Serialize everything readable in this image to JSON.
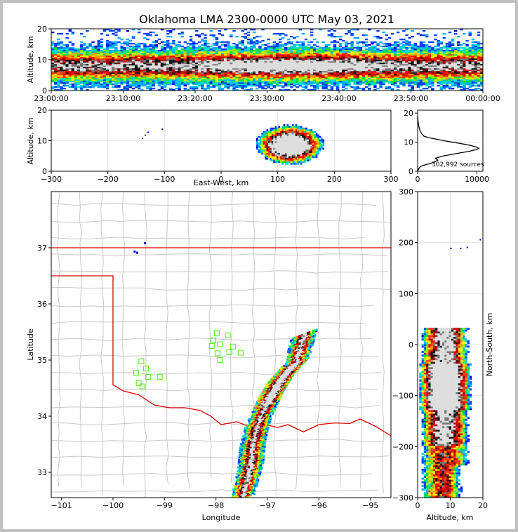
{
  "title": "Oklahoma LMA 2300-0000 UTC May 03, 2021",
  "chart_data": [
    {
      "type": "heatmap",
      "panel": "altitude-vs-time",
      "ylabel": "Altitude, km",
      "ylim": [
        0,
        20
      ],
      "yticks": [
        "0",
        "10",
        "20"
      ],
      "xticks": [
        "23:00:00",
        "23:10:00",
        "23:20:00",
        "23:30:00",
        "23:40:00",
        "23:50:00",
        "00:00:00"
      ],
      "xlim": [
        "23:00:00",
        "00:00:00"
      ],
      "peak_density_altitude_km": 8
    },
    {
      "type": "heatmap",
      "panel": "altitude-vs-east-west",
      "xlabel": "East-West, km",
      "ylabel": "Altitude, km",
      "xlim": [
        -300,
        300
      ],
      "ylim": [
        0,
        20
      ],
      "xticks": [
        "−300",
        "−200",
        "−100",
        "0",
        "100",
        "200",
        "300"
      ],
      "yticks": [
        "0",
        "10",
        "20"
      ],
      "core_x_km": [
        60,
        180
      ],
      "grid": true
    },
    {
      "type": "line",
      "panel": "source-altitude-histogram",
      "xlim": [
        0,
        11000
      ],
      "ylim": [
        0,
        21
      ],
      "xticks": [
        "0",
        "10000"
      ],
      "yticks": [
        "0",
        "10",
        "20"
      ],
      "annotation": "302,992 sources",
      "x": [
        0,
        200,
        500,
        900,
        1600,
        2600,
        3400,
        3000,
        4200,
        6300,
        8600,
        9800,
        10300,
        9800,
        8700,
        6800,
        4700,
        3200,
        2000,
        1100,
        650,
        400,
        200,
        80,
        0
      ],
      "y": [
        0,
        1,
        1.6,
        2,
        2.4,
        3,
        3.8,
        4.5,
        5.2,
        6,
        6.8,
        7.4,
        7.9,
        8.4,
        9,
        9.7,
        10.4,
        11,
        11.5,
        12,
        13,
        14,
        15.5,
        17,
        19
      ]
    },
    {
      "type": "heatmap",
      "panel": "plan-view-map",
      "xlabel": "Longitude",
      "ylabel": "Latitude",
      "xlim": [
        -101.2,
        -94.6
      ],
      "ylim": [
        32.55,
        38
      ],
      "xticks": [
        "−101",
        "−100",
        "−99",
        "−98",
        "−97",
        "−96",
        "−95"
      ],
      "yticks": [
        "33",
        "34",
        "35",
        "36",
        "37"
      ],
      "stations": [
        {
          "lon": -97.98,
          "lat": 35.48
        },
        {
          "lon": -98.05,
          "lat": 35.35
        },
        {
          "lon": -98.08,
          "lat": 35.25
        },
        {
          "lon": -97.92,
          "lat": 35.28
        },
        {
          "lon": -97.77,
          "lat": 35.44
        },
        {
          "lon": -97.67,
          "lat": 35.24
        },
        {
          "lon": -97.97,
          "lat": 35.12
        },
        {
          "lon": -97.74,
          "lat": 35.14
        },
        {
          "lon": -97.52,
          "lat": 35.13
        },
        {
          "lon": -97.92,
          "lat": 35.0
        },
        {
          "lon": -99.45,
          "lat": 34.98
        },
        {
          "lon": -99.36,
          "lat": 34.85
        },
        {
          "lon": -99.55,
          "lat": 34.77
        },
        {
          "lon": -99.32,
          "lat": 34.7
        },
        {
          "lon": -99.09,
          "lat": 34.7
        },
        {
          "lon": -99.5,
          "lat": 34.59
        },
        {
          "lon": -99.43,
          "lat": 34.53
        }
      ],
      "storm_axis": [
        {
          "lon": -97.52,
          "lat": 32.55
        },
        {
          "lon": -97.35,
          "lat": 33.1
        },
        {
          "lon": -97.3,
          "lat": 33.55
        },
        {
          "lon": -97.2,
          "lat": 33.9
        },
        {
          "lon": -96.95,
          "lat": 34.4
        },
        {
          "lon": -96.75,
          "lat": 34.7
        },
        {
          "lon": -96.45,
          "lat": 35.0
        },
        {
          "lon": -96.3,
          "lat": 35.5
        }
      ]
    },
    {
      "type": "heatmap",
      "panel": "altitude-vs-north-south",
      "xlabel": "Altitude, km",
      "ylabel": "North-South, km",
      "xlim": [
        0,
        20
      ],
      "ylim": [
        -300,
        300
      ],
      "xticks": [
        "0",
        "10",
        "20"
      ],
      "yticks": [
        "−300",
        "−200",
        "−100",
        "0",
        "100",
        "200",
        "300"
      ],
      "grid": true
    }
  ]
}
